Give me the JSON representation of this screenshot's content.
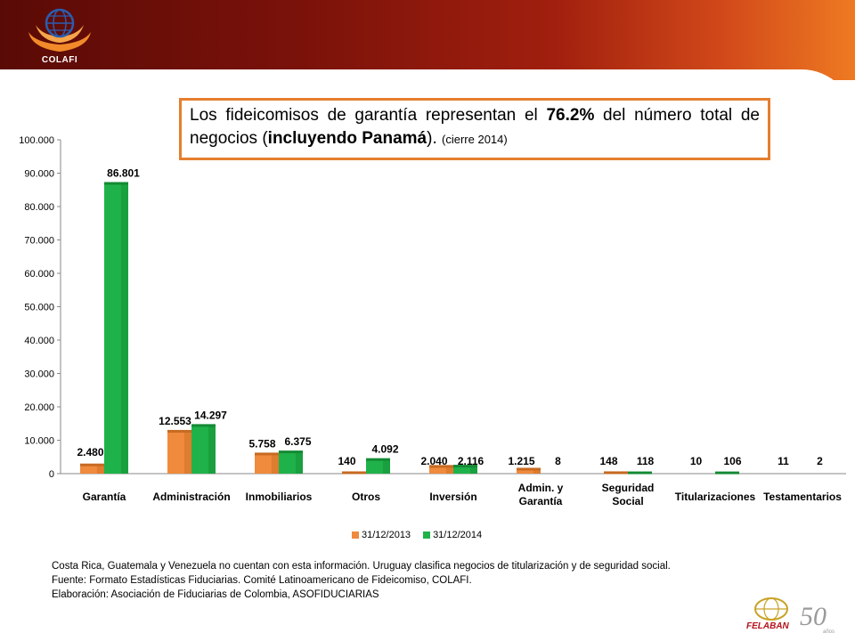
{
  "callout": {
    "part1": "Los fideicomisos de garantía representan el ",
    "pct": "76.2%",
    "part2": " del número total  de negocios (",
    "bold2": "incluyendo Panamá",
    "part3": "). ",
    "small": "(cierre 2014)"
  },
  "logos": {
    "colafi": "COLAFI",
    "felaban": "FELABAN",
    "felaban_years": "50",
    "felaban_anos": "años"
  },
  "colors": {
    "series_2013": "#f08a3c",
    "series_2014": "#1fb24a",
    "callout_border": "#e57e2e"
  },
  "chart_data": {
    "type": "bar",
    "categories": [
      "Garantía",
      "Administración",
      "Inmobiliarios",
      "Otros",
      "Inversión",
      "Admin. y Garantía",
      "Seguridad Social",
      "Titularizaciones",
      "Testamentarios"
    ],
    "series": [
      {
        "name": "31/12/2013",
        "values": [
          2480,
          12553,
          5758,
          140,
          2040,
          1215,
          148,
          10,
          11
        ],
        "labels": [
          "2.480",
          "12.553",
          "5.758",
          "140",
          "2.040",
          "1.215",
          "148",
          "10",
          "11"
        ]
      },
      {
        "name": "31/12/2014",
        "values": [
          86801,
          14297,
          6375,
          4092,
          2116,
          8,
          118,
          106,
          2
        ],
        "labels": [
          "86.801",
          "14.297",
          "6.375",
          "4.092",
          "2.116",
          "8",
          "118",
          "106",
          "2"
        ]
      }
    ],
    "ylim": [
      0,
      100000
    ],
    "yticks": [
      0,
      10000,
      20000,
      30000,
      40000,
      50000,
      60000,
      70000,
      80000,
      90000,
      100000
    ],
    "ytick_labels": [
      "0",
      "10.000",
      "20.000",
      "30.000",
      "40.000",
      "50.000",
      "60.000",
      "70.000",
      "80.000",
      "90.000",
      "100.000"
    ],
    "grid": false,
    "legend": "bottom"
  },
  "notes": [
    "Costa Rica, Guatemala y Venezuela no cuentan con esta información. Uruguay clasifica negocios de titularización y de seguridad social.",
    "Fuente: Formato Estadísticas Fiduciarias. Comité Latinoamericano de Fideicomiso, COLAFI.",
    "Elaboración: Asociación de Fiduciarias de Colombia, ASOFIDUCIARIAS"
  ]
}
